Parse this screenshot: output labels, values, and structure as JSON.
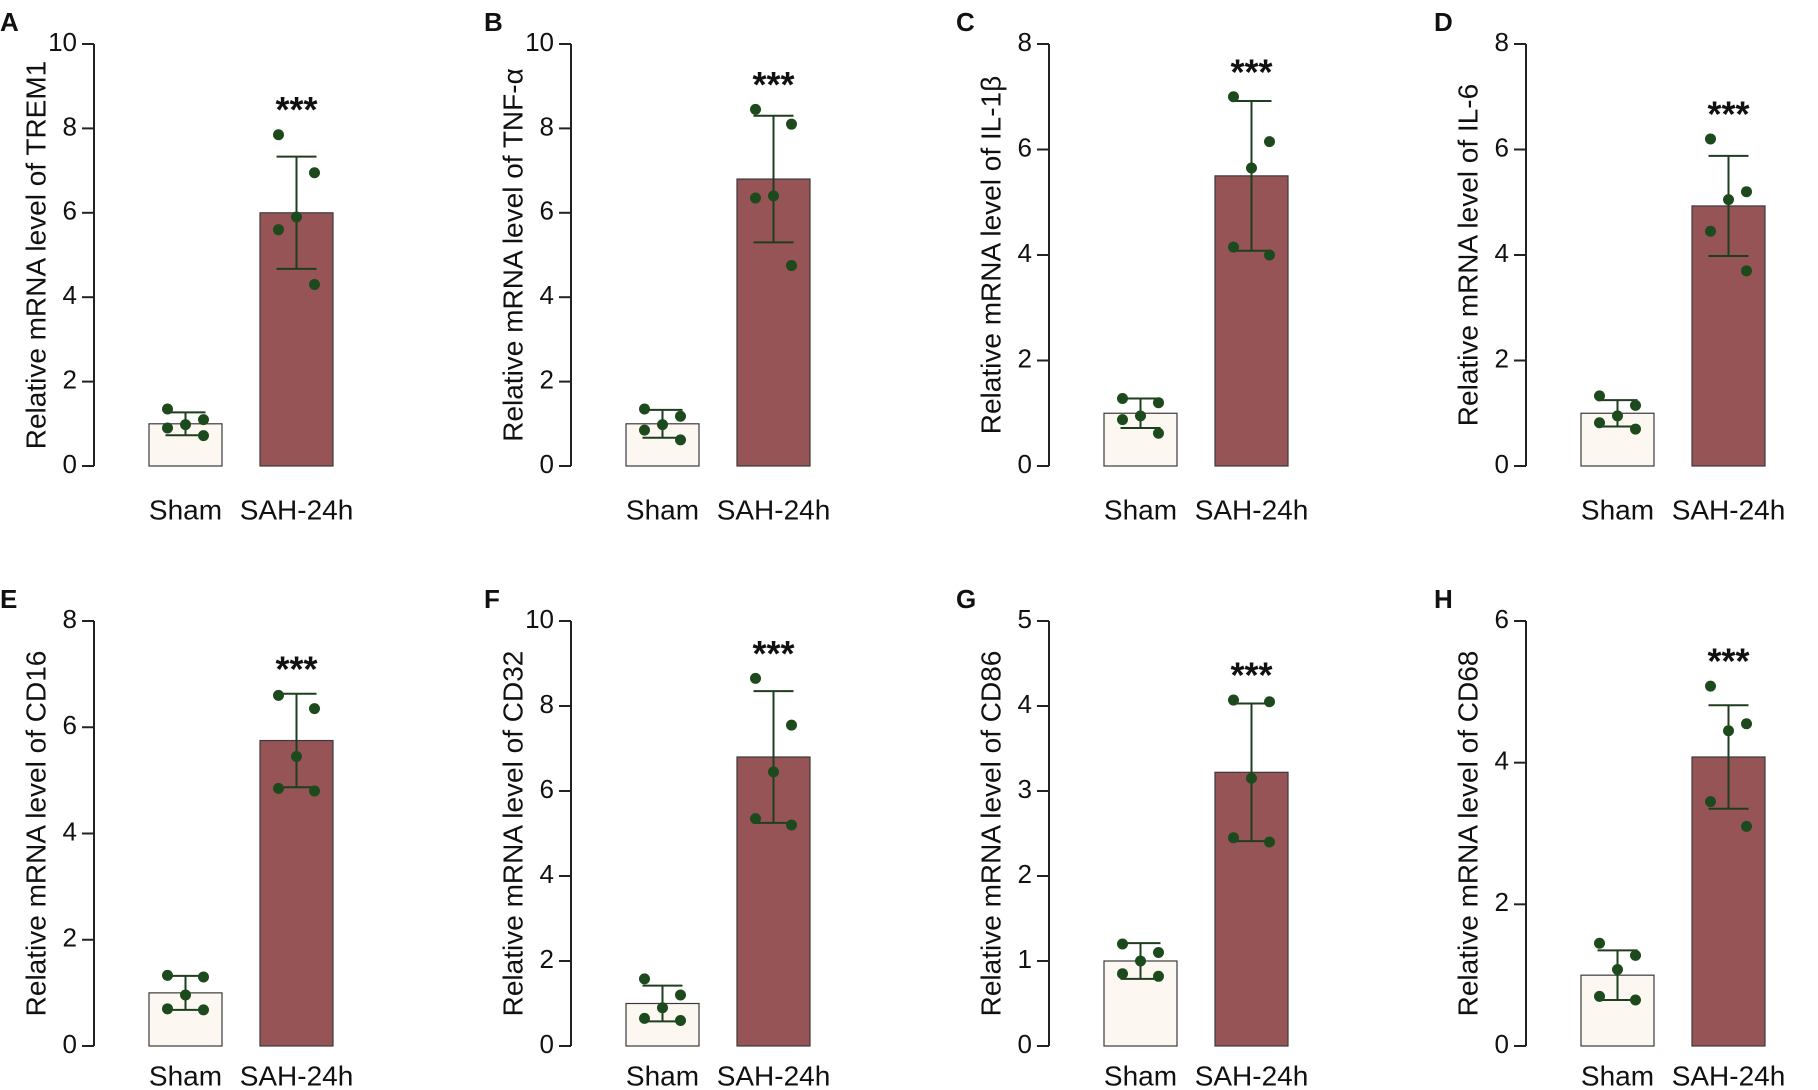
{
  "colors": {
    "sham_fill": "#fcf8f1",
    "sah_fill": "#965456",
    "bar_stroke": "#3a3a3a",
    "error_bar": "#1f3d1f",
    "points": "#1d4a1d",
    "axis": "#222222"
  },
  "chart_data": [
    {
      "type": "bar",
      "panel": "A",
      "ylabel": "Relative mRNA level of TREM1",
      "categories": [
        "Sham",
        "SAH-24h"
      ],
      "values": [
        1.0,
        6.0
      ],
      "errors": [
        0.27,
        1.33
      ],
      "points": [
        [
          1.35,
          1.1,
          0.98,
          0.9,
          0.72
        ],
        [
          7.85,
          6.95,
          5.9,
          5.6,
          4.3
        ]
      ],
      "ylim": [
        0,
        10
      ],
      "yticks": [
        0,
        2,
        4,
        6,
        8,
        10
      ],
      "significance": "***"
    },
    {
      "type": "bar",
      "panel": "B",
      "ylabel": "Relative mRNA level of TNF-α",
      "categories": [
        "Sham",
        "SAH-24h"
      ],
      "values": [
        1.0,
        6.8
      ],
      "errors": [
        0.33,
        1.5
      ],
      "points": [
        [
          1.35,
          1.18,
          0.98,
          0.85,
          0.62
        ],
        [
          8.45,
          8.1,
          6.4,
          6.35,
          4.75
        ]
      ],
      "ylim": [
        0,
        10
      ],
      "yticks": [
        0,
        2,
        4,
        6,
        8,
        10
      ],
      "significance": "***"
    },
    {
      "type": "bar",
      "panel": "C",
      "ylabel": "Relative mRNA level of IL-1β",
      "categories": [
        "Sham",
        "SAH-24h"
      ],
      "values": [
        1.0,
        5.5
      ],
      "errors": [
        0.28,
        1.42
      ],
      "points": [
        [
          1.28,
          1.2,
          0.95,
          0.88,
          0.62
        ],
        [
          7.0,
          6.15,
          5.65,
          4.15,
          4.0
        ]
      ],
      "ylim": [
        0,
        8
      ],
      "yticks": [
        0,
        2,
        4,
        6,
        8
      ],
      "significance": "***"
    },
    {
      "type": "bar",
      "panel": "D",
      "ylabel": "Relative mRNA level of IL-6",
      "categories": [
        "Sham",
        "SAH-24h"
      ],
      "values": [
        1.0,
        4.93
      ],
      "errors": [
        0.25,
        0.95
      ],
      "points": [
        [
          1.33,
          1.15,
          0.95,
          0.82,
          0.7
        ],
        [
          6.2,
          5.2,
          5.05,
          4.45,
          3.7
        ]
      ],
      "ylim": [
        0,
        8
      ],
      "yticks": [
        0,
        2,
        4,
        6,
        8
      ],
      "significance": "***"
    },
    {
      "type": "bar",
      "panel": "E",
      "ylabel": "Relative mRNA level of CD16",
      "categories": [
        "Sham",
        "SAH-24h"
      ],
      "values": [
        1.0,
        5.75
      ],
      "errors": [
        0.32,
        0.88
      ],
      "points": [
        [
          1.33,
          1.3,
          0.96,
          0.7,
          0.68
        ],
        [
          6.6,
          6.35,
          5.45,
          4.85,
          4.8
        ]
      ],
      "ylim": [
        0,
        8
      ],
      "yticks": [
        0,
        2,
        4,
        6,
        8
      ],
      "significance": "***"
    },
    {
      "type": "bar",
      "panel": "F",
      "ylabel": "Relative mRNA level of CD32",
      "categories": [
        "Sham",
        "SAH-24h"
      ],
      "values": [
        1.0,
        6.8
      ],
      "errors": [
        0.42,
        1.55
      ],
      "points": [
        [
          1.58,
          1.2,
          0.9,
          0.65,
          0.6
        ],
        [
          8.65,
          7.55,
          6.45,
          5.35,
          5.2
        ]
      ],
      "ylim": [
        0,
        10
      ],
      "yticks": [
        0,
        2,
        4,
        6,
        8,
        10
      ],
      "significance": "***"
    },
    {
      "type": "bar",
      "panel": "G",
      "ylabel": "Relative mRNA level of CD86",
      "categories": [
        "Sham",
        "SAH-24h"
      ],
      "values": [
        1.0,
        3.22
      ],
      "errors": [
        0.21,
        0.81
      ],
      "points": [
        [
          1.2,
          1.1,
          1.0,
          0.85,
          0.82
        ],
        [
          4.07,
          4.05,
          3.15,
          2.45,
          2.4
        ]
      ],
      "ylim": [
        0,
        5
      ],
      "yticks": [
        0,
        1,
        2,
        3,
        4,
        5
      ],
      "significance": "***"
    },
    {
      "type": "bar",
      "panel": "H",
      "ylabel": "Relative mRNA level of CD68",
      "categories": [
        "Sham",
        "SAH-24h"
      ],
      "values": [
        1.0,
        4.08
      ],
      "errors": [
        0.35,
        0.73
      ],
      "points": [
        [
          1.45,
          1.28,
          1.08,
          0.7,
          0.65
        ],
        [
          5.08,
          4.55,
          4.45,
          3.45,
          3.1
        ]
      ],
      "ylim": [
        0,
        6
      ],
      "yticks": [
        0,
        2,
        4,
        6
      ],
      "significance": "***"
    }
  ]
}
